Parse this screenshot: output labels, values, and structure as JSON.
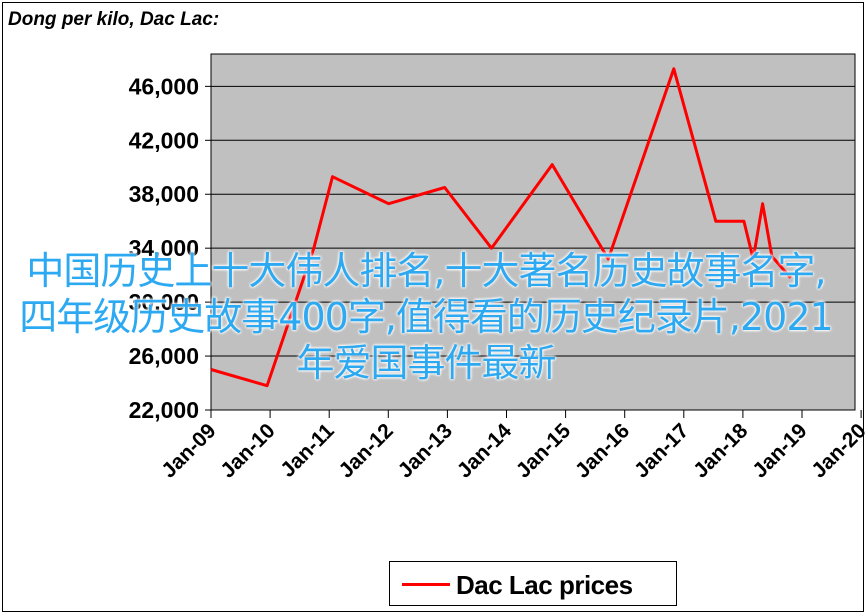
{
  "chart_data": {
    "type": "line",
    "title": "Dong per kilo, Dac Lac:",
    "xlabel": "",
    "ylabel": "",
    "x_tick_labels": [
      "Jan-09",
      "Jan-10",
      "Jan-11",
      "Jan-12",
      "Jan-13",
      "Jan-14",
      "Jan-15",
      "Jan-16",
      "Jan-17",
      "Jan-18",
      "Jan-19",
      "Jan-20"
    ],
    "y_tick_values": [
      22000,
      26000,
      30000,
      34000,
      38000,
      42000,
      46000
    ],
    "y_tick_labels": [
      "22,000",
      "26,000",
      "30,000",
      "34,000",
      "38,000",
      "42,000",
      "46,000"
    ],
    "ylim": [
      22000,
      48400
    ],
    "xlim": [
      "2009-01",
      "2020-01"
    ],
    "grid": true,
    "legend_position": "bottom",
    "series": [
      {
        "name": "Dac Lac prices",
        "color": "#ff0000",
        "points": [
          {
            "x": "2009-01",
            "y": 25000
          },
          {
            "x": "2010-01",
            "y": 23800
          },
          {
            "x": "2010-11",
            "y": 34000
          },
          {
            "x": "2011-03",
            "y": 39300
          },
          {
            "x": "2012-03",
            "y": 37300
          },
          {
            "x": "2013-03",
            "y": 38500
          },
          {
            "x": "2014-01",
            "y": 34000
          },
          {
            "x": "2015-02",
            "y": 40200
          },
          {
            "x": "2016-02",
            "y": 33200
          },
          {
            "x": "2017-04",
            "y": 47300
          },
          {
            "x": "2018-01",
            "y": 36000
          },
          {
            "x": "2018-07",
            "y": 36000
          },
          {
            "x": "2018-09",
            "y": 33200
          },
          {
            "x": "2018-11",
            "y": 37300
          },
          {
            "x": "2019-01",
            "y": 33400
          },
          {
            "x": "2019-05",
            "y": 31800
          }
        ]
      }
    ]
  },
  "legend": {
    "label": "Dac Lac prices"
  },
  "overlay": {
    "text": "中国历史上十大伟人排名,十大著名历史故事名字,四年级历史故事400字,值得看的历史纪录片,2021年爱国事件最新"
  },
  "colors": {
    "plot_background": "#c0c0c0",
    "line": "#ff0000",
    "overlay_text": "#2da9f2"
  }
}
